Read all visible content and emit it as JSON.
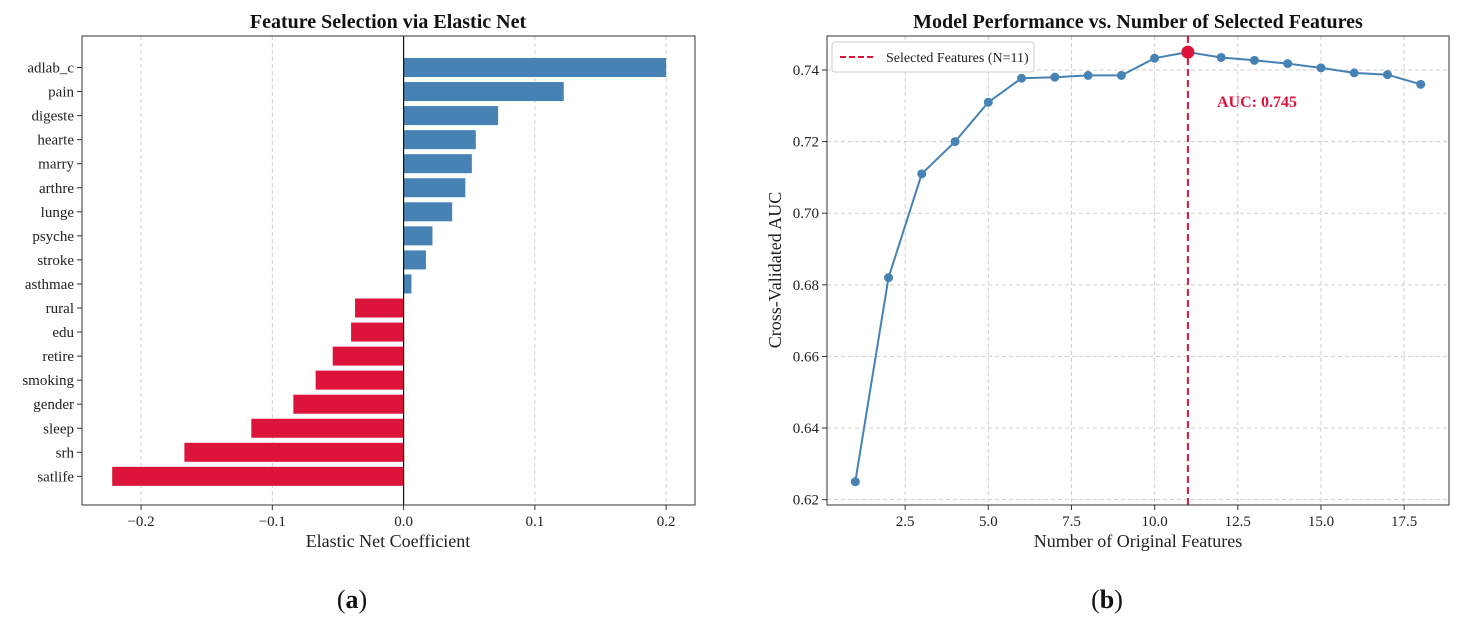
{
  "chart_data": [
    {
      "type": "bar",
      "orientation": "horizontal",
      "title": "Feature Selection via Elastic Net",
      "xlabel": "Elastic Net Coefficient",
      "ylabel": "",
      "categories": [
        "adlab_c",
        "pain",
        "digeste",
        "hearte",
        "marry",
        "arthre",
        "lunge",
        "psyche",
        "stroke",
        "asthmae",
        "rural",
        "edu",
        "retire",
        "smoking",
        "gender",
        "sleep",
        "srh",
        "satlife"
      ],
      "values": [
        0.2,
        0.122,
        0.072,
        0.055,
        0.052,
        0.047,
        0.037,
        0.022,
        0.017,
        0.006,
        -0.037,
        -0.04,
        -0.054,
        -0.067,
        -0.084,
        -0.116,
        -0.167,
        -0.222
      ],
      "xlim": [
        -0.245,
        0.222
      ],
      "xticks": [
        -0.2,
        -0.1,
        0.0,
        0.1,
        0.2
      ],
      "xtick_labels": [
        "−0.2",
        "−0.1",
        "0.0",
        "0.1",
        "0.2"
      ],
      "positive_color": "#4682B4",
      "negative_color": "#DC143C",
      "grid": "x-dashed",
      "panel_label": "a"
    },
    {
      "type": "line",
      "title": "Model Performance vs. Number of Selected Features",
      "xlabel": "Number of Original Features",
      "ylabel": "Cross-Validated AUC",
      "x": [
        1,
        2,
        3,
        4,
        5,
        6,
        7,
        8,
        9,
        10,
        11,
        12,
        13,
        14,
        15,
        16,
        17,
        18
      ],
      "y": [
        0.625,
        0.682,
        0.711,
        0.72,
        0.731,
        0.7377,
        0.738,
        0.7385,
        0.7385,
        0.7433,
        0.745,
        0.7435,
        0.7427,
        0.7418,
        0.7406,
        0.7392,
        0.7387,
        0.736
      ],
      "xlim": [
        0.15,
        18.85
      ],
      "ylim": [
        0.6185,
        0.7495
      ],
      "xticks": [
        2.5,
        5.0,
        7.5,
        10.0,
        12.5,
        15.0,
        17.5
      ],
      "xtick_labels": [
        "2.5",
        "5.0",
        "7.5",
        "10.0",
        "12.5",
        "15.0",
        "17.5"
      ],
      "yticks": [
        0.62,
        0.64,
        0.66,
        0.68,
        0.7,
        0.72,
        0.74
      ],
      "ytick_labels": [
        "0.62",
        "0.64",
        "0.66",
        "0.68",
        "0.70",
        "0.72",
        "0.74"
      ],
      "line_color": "#4682B4",
      "highlight": {
        "x": 11,
        "y": 0.745,
        "color": "#DC143C"
      },
      "vline": {
        "x": 11,
        "color": "#DC143C",
        "style": "dashed"
      },
      "legend": [
        {
          "label": "Selected Features (N=11)",
          "style": "dashed",
          "color": "#DC143C"
        }
      ],
      "legend_position": "top-left",
      "annotation": "AUC: 0.745",
      "grid": "both-dashed",
      "panel_label": "b"
    }
  ]
}
